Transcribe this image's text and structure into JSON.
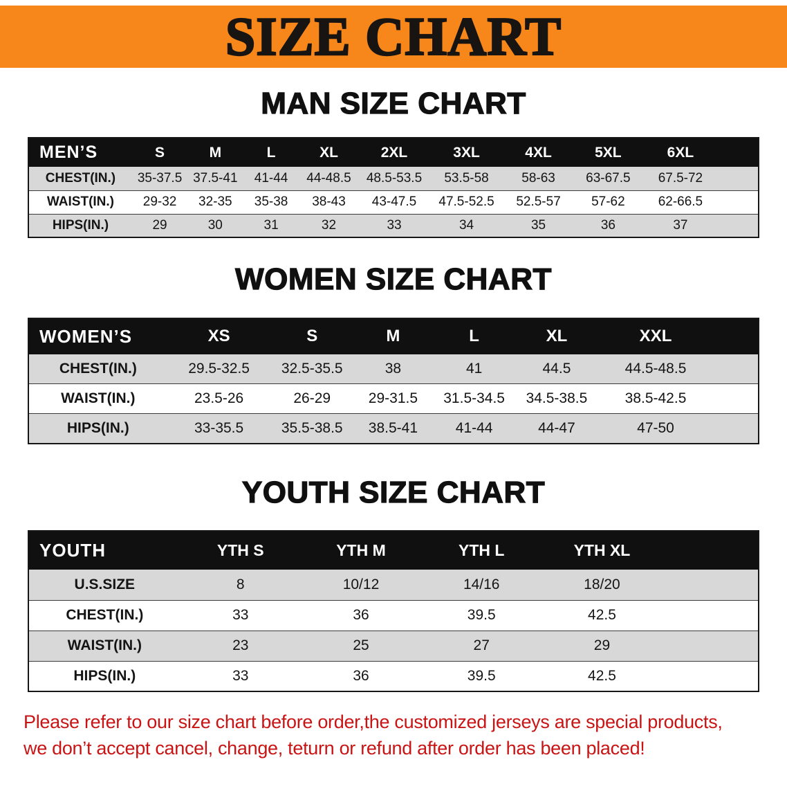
{
  "banner": {
    "title": "SIZE CHART"
  },
  "chart_data": [
    {
      "type": "table",
      "title": "MAN SIZE CHART",
      "corner_label": "MEN’S",
      "columns": [
        "S",
        "M",
        "L",
        "XL",
        "2XL",
        "3XL",
        "4XL",
        "5XL",
        "6XL"
      ],
      "rows": [
        {
          "label": "CHEST(IN.)",
          "values": [
            "35-37.5",
            "37.5-41",
            "41-44",
            "44-48.5",
            "48.5-53.5",
            "53.5-58",
            "58-63",
            "63-67.5",
            "67.5-72"
          ]
        },
        {
          "label": "WAIST(IN.)",
          "values": [
            "29-32",
            "32-35",
            "35-38",
            "38-43",
            "43-47.5",
            "47.5-52.5",
            "52.5-57",
            "57-62",
            "62-66.5"
          ]
        },
        {
          "label": "HIPS(IN.)",
          "values": [
            "29",
            "30",
            "31",
            "32",
            "33",
            "34",
            "35",
            "36",
            "37"
          ]
        }
      ]
    },
    {
      "type": "table",
      "title": "WOMEN SIZE CHART",
      "corner_label": "WOMEN’S",
      "columns": [
        "XS",
        "S",
        "M",
        "L",
        "XL",
        "XXL"
      ],
      "rows": [
        {
          "label": "CHEST(IN.)",
          "values": [
            "29.5-32.5",
            "32.5-35.5",
            "38",
            "41",
            "44.5",
            "44.5-48.5"
          ]
        },
        {
          "label": "WAIST(IN.)",
          "values": [
            "23.5-26",
            "26-29",
            "29-31.5",
            "31.5-34.5",
            "34.5-38.5",
            "38.5-42.5"
          ]
        },
        {
          "label": "HIPS(IN.)",
          "values": [
            "33-35.5",
            "35.5-38.5",
            "38.5-41",
            "41-44",
            "44-47",
            "47-50"
          ]
        }
      ]
    },
    {
      "type": "table",
      "title": "YOUTH SIZE CHART",
      "corner_label": "YOUTH",
      "columns": [
        "YTH S",
        "YTH M",
        "YTH L",
        "YTH XL"
      ],
      "rows": [
        {
          "label": "U.S.SIZE",
          "values": [
            "8",
            "10/12",
            "14/16",
            "18/20"
          ]
        },
        {
          "label": "CHEST(IN.)",
          "values": [
            "33",
            "36",
            "39.5",
            "42.5"
          ]
        },
        {
          "label": "WAIST(IN.)",
          "values": [
            "23",
            "25",
            "27",
            "29"
          ]
        },
        {
          "label": "HIPS(IN.)",
          "values": [
            "33",
            "36",
            "39.5",
            "42.5"
          ]
        }
      ]
    }
  ],
  "disclaimer": {
    "line1": "Please refer to our size chart before order,the customized jerseys are special products,",
    "line2": "we don’t accept cancel, change, teturn or refund after order has been placed!"
  },
  "colors": {
    "banner_bg": "#F7871B",
    "table_header_bg": "#101010",
    "table_header_text": "#FFFFFF",
    "row_shaded_bg": "#D8D8D8",
    "disclaimer_text": "#C81414"
  }
}
